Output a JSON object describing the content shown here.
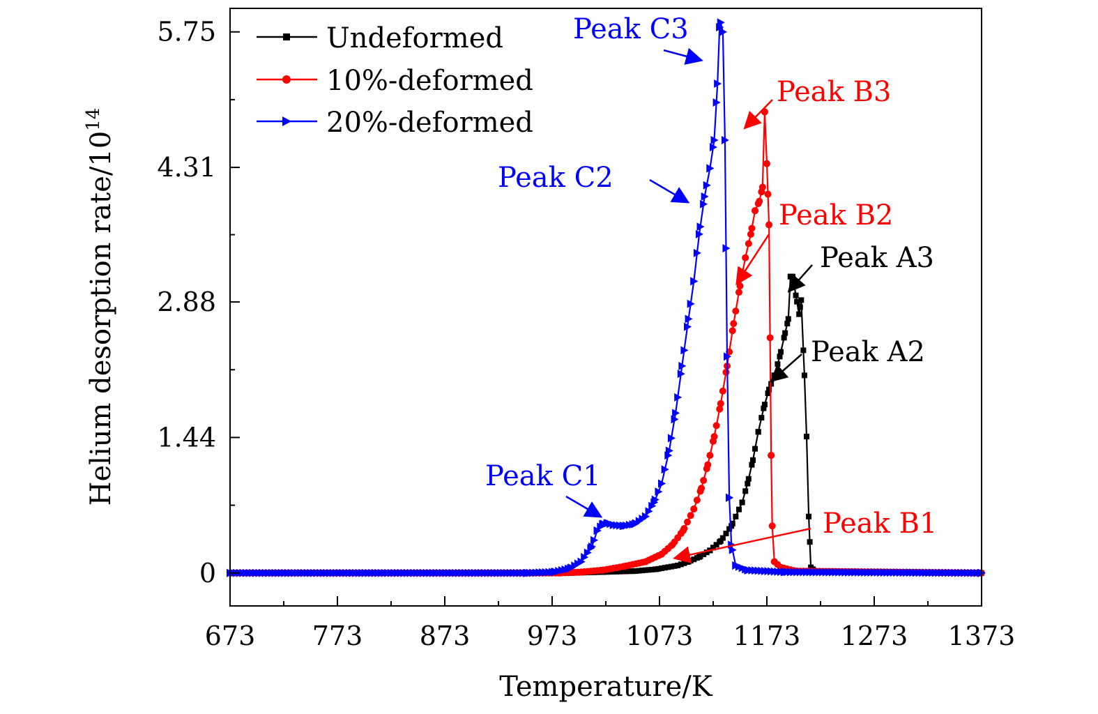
{
  "chart_data": {
    "type": "line",
    "title": "",
    "xlabel": "Temperature/K",
    "ylabel": {
      "base": "Helium desorption rate/10",
      "exponent": "14"
    },
    "xlim": [
      673,
      1373
    ],
    "ylim": [
      -0.35,
      6.0
    ],
    "xticks": [
      673,
      773,
      873,
      973,
      1073,
      1173,
      1273,
      1373
    ],
    "yticks": [
      0,
      1.44,
      2.88,
      4.31,
      5.75
    ],
    "ytick_labels": [
      "0",
      "1.44",
      "2.88",
      "4.31",
      "5.75"
    ],
    "grid": false,
    "legend": {
      "position": "top-left"
    },
    "series": [
      {
        "name": "Undeformed",
        "color": "#000000",
        "marker": "square",
        "points": [
          [
            673,
            0
          ],
          [
            900,
            0
          ],
          [
            990,
            0
          ],
          [
            1020,
            0.01
          ],
          [
            1050,
            0.02
          ],
          [
            1070,
            0.04
          ],
          [
            1090,
            0.08
          ],
          [
            1100,
            0.12
          ],
          [
            1110,
            0.17
          ],
          [
            1120,
            0.24
          ],
          [
            1130,
            0.34
          ],
          [
            1140,
            0.5
          ],
          [
            1150,
            0.75
          ],
          [
            1155,
            0.95
          ],
          [
            1160,
            1.2
          ],
          [
            1165,
            1.5
          ],
          [
            1170,
            1.75
          ],
          [
            1175,
            1.95
          ],
          [
            1180,
            2.1
          ],
          [
            1185,
            2.3
          ],
          [
            1190,
            2.55
          ],
          [
            1193,
            2.7
          ],
          [
            1195,
            3.15
          ],
          [
            1197,
            3.15
          ],
          [
            1200,
            2.95
          ],
          [
            1203,
            2.75
          ],
          [
            1205,
            2.9
          ],
          [
            1208,
            2.1
          ],
          [
            1210,
            1.45
          ],
          [
            1212,
            0.6
          ],
          [
            1214,
            0.06
          ],
          [
            1218,
            0.02
          ],
          [
            1240,
            0.01
          ],
          [
            1373,
            0
          ]
        ]
      },
      {
        "name": "10%-deformed",
        "color": "#ff0000",
        "marker": "circle",
        "points": [
          [
            673,
            0
          ],
          [
            980,
            0
          ],
          [
            1000,
            0.01
          ],
          [
            1020,
            0.03
          ],
          [
            1040,
            0.07
          ],
          [
            1060,
            0.12
          ],
          [
            1075,
            0.2
          ],
          [
            1085,
            0.3
          ],
          [
            1095,
            0.45
          ],
          [
            1105,
            0.68
          ],
          [
            1112,
            0.9
          ],
          [
            1118,
            1.15
          ],
          [
            1124,
            1.45
          ],
          [
            1130,
            1.8
          ],
          [
            1136,
            2.2
          ],
          [
            1142,
            2.65
          ],
          [
            1148,
            3.05
          ],
          [
            1153,
            3.35
          ],
          [
            1158,
            3.6
          ],
          [
            1162,
            3.85
          ],
          [
            1166,
            3.95
          ],
          [
            1169,
            4.1
          ],
          [
            1171,
            4.9
          ],
          [
            1173,
            4.35
          ],
          [
            1175,
            3.7
          ],
          [
            1176,
            2.5
          ],
          [
            1177,
            1.25
          ],
          [
            1178,
            0.5
          ],
          [
            1180,
            0.12
          ],
          [
            1186,
            0.06
          ],
          [
            1200,
            0.02
          ],
          [
            1373,
            0
          ]
        ]
      },
      {
        "name": "20%-deformed",
        "color": "#0000ff",
        "marker": "triangle",
        "points": [
          [
            673,
            0
          ],
          [
            950,
            0
          ],
          [
            975,
            0.01
          ],
          [
            990,
            0.05
          ],
          [
            1000,
            0.12
          ],
          [
            1010,
            0.28
          ],
          [
            1015,
            0.45
          ],
          [
            1020,
            0.52
          ],
          [
            1025,
            0.53
          ],
          [
            1030,
            0.51
          ],
          [
            1040,
            0.5
          ],
          [
            1050,
            0.52
          ],
          [
            1060,
            0.6
          ],
          [
            1068,
            0.75
          ],
          [
            1075,
            0.95
          ],
          [
            1082,
            1.3
          ],
          [
            1088,
            1.7
          ],
          [
            1094,
            2.2
          ],
          [
            1100,
            2.7
          ],
          [
            1105,
            3.1
          ],
          [
            1110,
            3.6
          ],
          [
            1115,
            4.0
          ],
          [
            1120,
            4.3
          ],
          [
            1124,
            4.6
          ],
          [
            1127,
            5.2
          ],
          [
            1129,
            5.8
          ],
          [
            1130,
            5.85
          ],
          [
            1132,
            5.75
          ],
          [
            1134,
            4.6
          ],
          [
            1136,
            2.3
          ],
          [
            1138,
            0.8
          ],
          [
            1140,
            0.3
          ],
          [
            1144,
            0.08
          ],
          [
            1155,
            0.03
          ],
          [
            1190,
            0.01
          ],
          [
            1373,
            0
          ]
        ]
      }
    ],
    "annotations": [
      {
        "text": "Peak C3",
        "color": "#0000ff"
      },
      {
        "text": "Peak B3",
        "color": "#ff0000"
      },
      {
        "text": "Peak C2",
        "color": "#0000ff"
      },
      {
        "text": "Peak B2",
        "color": "#ff0000"
      },
      {
        "text": "Peak A3",
        "color": "#000000"
      },
      {
        "text": "Peak A2",
        "color": "#000000"
      },
      {
        "text": "Peak C1",
        "color": "#0000ff"
      },
      {
        "text": "Peak B1",
        "color": "#ff0000"
      }
    ]
  }
}
